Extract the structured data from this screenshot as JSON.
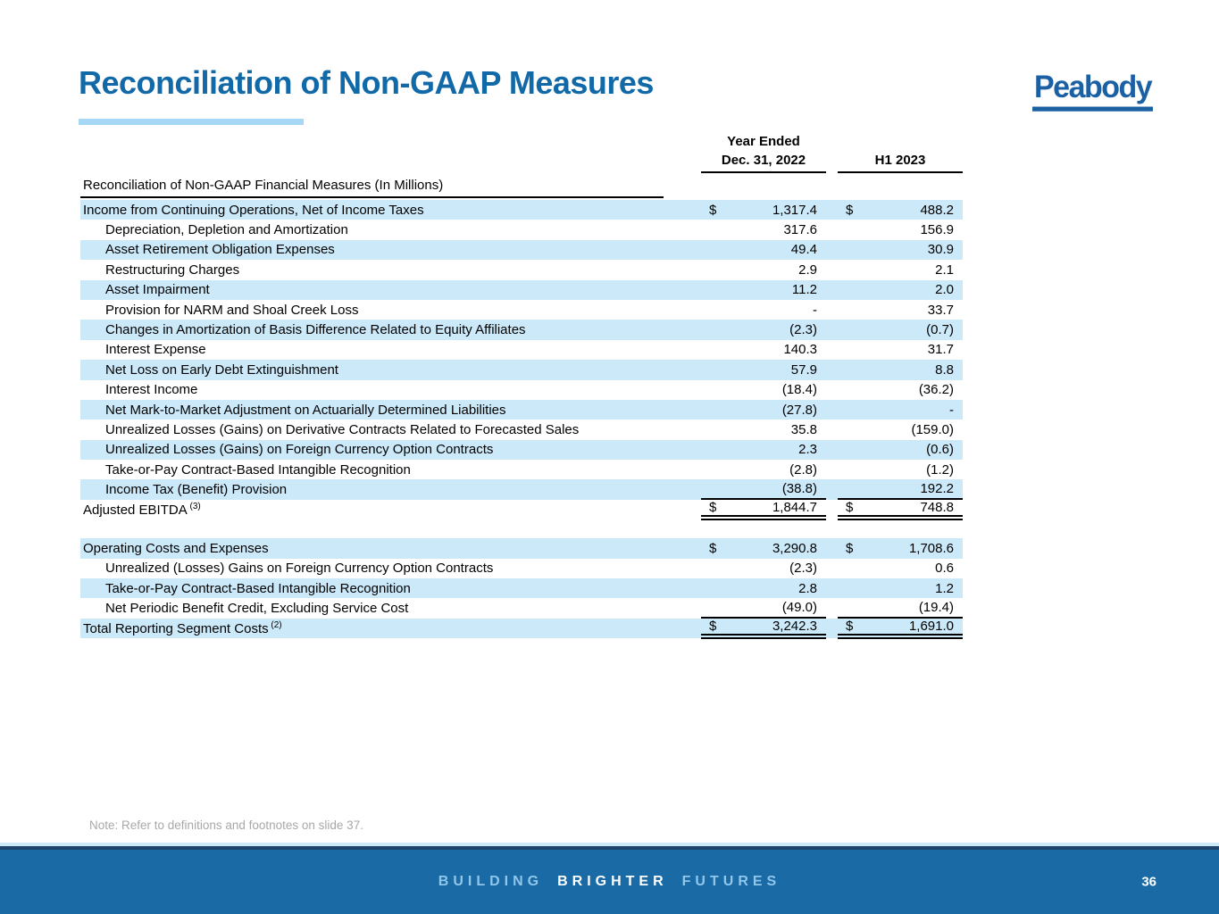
{
  "slide": {
    "title": "Reconciliation of Non-GAAP Measures",
    "logo_text": "Peabody",
    "footnote": "Note: Refer to definitions and footnotes on slide 37.",
    "footer": {
      "tagline_part1": "BUILDING",
      "tagline_part2": "BRIGHTER",
      "tagline_part3": "FUTURES",
      "page_number": "36"
    }
  },
  "colors": {
    "title_blue": "#1269a7",
    "accent_light_blue": "#a6d7f4",
    "row_highlight": "#cce9f9",
    "logo_blue": "#1c60a4",
    "footer_bar": "#1a6aa6",
    "footer_dark_line": "#1e4469",
    "footer_light_line": "#cde9f8",
    "footer_light_text": "#8fc6ea",
    "footnote_gray": "#a8a8a8"
  },
  "table": {
    "currency_symbol": "$",
    "header": {
      "group_label": "Year Ended",
      "col1": "Dec. 31, 2022",
      "col2": "H1 2023",
      "section_label": "Reconciliation of Non-GAAP Financial Measures (In Millions)"
    },
    "rows": [
      {
        "label": "Income from Continuing Operations, Net of Income Taxes",
        "hl": true,
        "d": true,
        "v1": "1,317.4",
        "v2": "488.2"
      },
      {
        "label": "Depreciation, Depletion and Amortization",
        "indent": true,
        "v1": "317.6",
        "v2": "156.9"
      },
      {
        "label": "Asset Retirement Obligation Expenses",
        "indent": true,
        "hl": true,
        "v1": "49.4",
        "v2": "30.9"
      },
      {
        "label": "Restructuring Charges",
        "indent": true,
        "v1": "2.9",
        "v2": "2.1"
      },
      {
        "label": "Asset Impairment",
        "indent": true,
        "hl": true,
        "v1": "11.2",
        "v2": "2.0"
      },
      {
        "label": "Provision for NARM and Shoal Creek Loss",
        "indent": true,
        "v1": "-",
        "v2": "33.7"
      },
      {
        "label": "Changes in Amortization of Basis Difference Related to Equity Affiliates",
        "indent": true,
        "hl": true,
        "v1": "(2.3)",
        "v2": "(0.7)"
      },
      {
        "label": "Interest Expense",
        "indent": true,
        "v1": "140.3",
        "v2": "31.7"
      },
      {
        "label": "Net Loss on Early Debt Extinguishment",
        "indent": true,
        "hl": true,
        "v1": "57.9",
        "v2": "8.8"
      },
      {
        "label": "Interest Income",
        "indent": true,
        "v1": "(18.4)",
        "v2": "(36.2)"
      },
      {
        "label": "Net Mark-to-Market Adjustment on Actuarially Determined Liabilities",
        "indent": true,
        "hl": true,
        "v1": "(27.8)",
        "v2": "-"
      },
      {
        "label": "Unrealized Losses (Gains) on Derivative Contracts Related to Forecasted Sales",
        "indent": true,
        "v1": "35.8",
        "v2": "(159.0)"
      },
      {
        "label": "Unrealized Losses (Gains) on Foreign Currency Option Contracts",
        "indent": true,
        "hl": true,
        "v1": "2.3",
        "v2": "(0.6)"
      },
      {
        "label": "Take-or-Pay Contract-Based Intangible Recognition",
        "indent": true,
        "v1": "(2.8)",
        "v2": "(1.2)"
      },
      {
        "label": "Income Tax (Benefit) Provision",
        "indent": true,
        "hl": true,
        "v1": "(38.8)",
        "v2": "192.2",
        "border": "line-below"
      },
      {
        "label": "Adjusted EBITDA",
        "sup": "(3)",
        "d": true,
        "v1": "1,844.7",
        "v2": "748.8",
        "border": "dbl-below"
      },
      {
        "spacer": true
      },
      {
        "label": "Operating Costs and Expenses",
        "hl": true,
        "d": true,
        "v1": "3,290.8",
        "v2": "1,708.6"
      },
      {
        "label": "Unrealized (Losses) Gains on Foreign Currency Option Contracts",
        "indent": true,
        "v1": "(2.3)",
        "v2": "0.6"
      },
      {
        "label": "Take-or-Pay Contract-Based Intangible Recognition",
        "indent": true,
        "hl": true,
        "v1": "2.8",
        "v2": "1.2"
      },
      {
        "label": "Net Periodic Benefit Credit, Excluding Service Cost",
        "indent": true,
        "v1": "(49.0)",
        "v2": "(19.4)",
        "border": "line-below"
      },
      {
        "label": "Total Reporting Segment Costs",
        "sup": "(2)",
        "hl": true,
        "d": true,
        "v1": "3,242.3",
        "v2": "1,691.0",
        "border": "dbl-below"
      }
    ]
  }
}
